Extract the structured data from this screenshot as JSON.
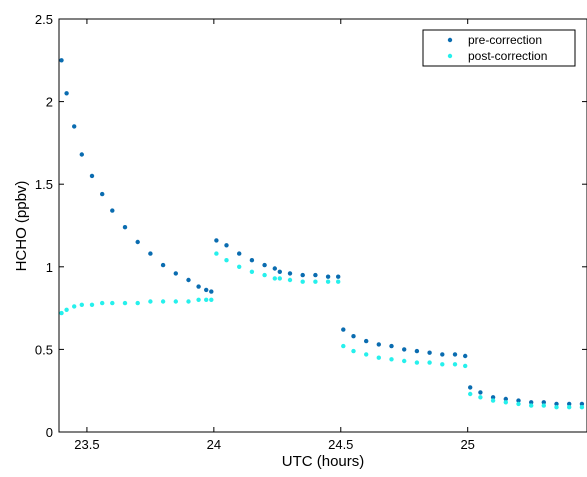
{
  "chart_data": {
    "type": "scatter",
    "xlabel": "UTC (hours)",
    "ylabel": "HCHO (ppbv)",
    "xlim": [
      23.39,
      25.47
    ],
    "ylim": [
      0,
      2.5
    ],
    "x_ticks": [
      "23.5",
      "24",
      "24.5",
      "25"
    ],
    "y_ticks": [
      "0",
      "0.5",
      "1",
      "1.5",
      "2",
      "2.5"
    ],
    "x_tick_values": [
      23.5,
      24,
      24.5,
      25
    ],
    "y_tick_values": [
      0,
      0.5,
      1,
      1.5,
      2,
      2.5
    ],
    "grid": false,
    "legend_position": "top-right",
    "series": [
      {
        "name": "pre-correction",
        "color": "#0a6cb0",
        "x": [
          23.4,
          23.42,
          23.45,
          23.48,
          23.52,
          23.56,
          23.6,
          23.65,
          23.7,
          23.75,
          23.8,
          23.85,
          23.9,
          23.94,
          23.97,
          23.99,
          24.01,
          24.05,
          24.1,
          24.15,
          24.2,
          24.24,
          24.26,
          24.3,
          24.35,
          24.4,
          24.45,
          24.49,
          24.51,
          24.55,
          24.6,
          24.65,
          24.7,
          24.75,
          24.8,
          24.85,
          24.9,
          24.95,
          24.99,
          25.01,
          25.05,
          25.1,
          25.15,
          25.2,
          25.25,
          25.3,
          25.35,
          25.4,
          25.45
        ],
        "y": [
          2.25,
          2.05,
          1.85,
          1.68,
          1.55,
          1.44,
          1.34,
          1.24,
          1.15,
          1.08,
          1.01,
          0.96,
          0.92,
          0.88,
          0.86,
          0.85,
          1.16,
          1.13,
          1.08,
          1.04,
          1.01,
          0.99,
          0.97,
          0.96,
          0.95,
          0.95,
          0.94,
          0.94,
          0.62,
          0.58,
          0.55,
          0.53,
          0.52,
          0.5,
          0.49,
          0.48,
          0.47,
          0.47,
          0.46,
          0.27,
          0.24,
          0.21,
          0.2,
          0.19,
          0.18,
          0.18,
          0.17,
          0.17,
          0.17
        ]
      },
      {
        "name": "post-correction",
        "color": "#26f0ec",
        "x": [
          23.4,
          23.42,
          23.45,
          23.48,
          23.52,
          23.56,
          23.6,
          23.65,
          23.7,
          23.75,
          23.8,
          23.85,
          23.9,
          23.94,
          23.97,
          23.99,
          24.01,
          24.05,
          24.1,
          24.15,
          24.2,
          24.24,
          24.26,
          24.3,
          24.35,
          24.4,
          24.45,
          24.49,
          24.51,
          24.55,
          24.6,
          24.65,
          24.7,
          24.75,
          24.8,
          24.85,
          24.9,
          24.95,
          24.99,
          25.01,
          25.05,
          25.1,
          25.15,
          25.2,
          25.25,
          25.3,
          25.35,
          25.4,
          25.45
        ],
        "y": [
          0.72,
          0.74,
          0.76,
          0.77,
          0.77,
          0.78,
          0.78,
          0.78,
          0.78,
          0.79,
          0.79,
          0.79,
          0.79,
          0.8,
          0.8,
          0.8,
          1.08,
          1.04,
          1.0,
          0.97,
          0.95,
          0.93,
          0.93,
          0.92,
          0.91,
          0.91,
          0.91,
          0.91,
          0.52,
          0.49,
          0.47,
          0.45,
          0.44,
          0.43,
          0.42,
          0.42,
          0.41,
          0.41,
          0.4,
          0.23,
          0.21,
          0.19,
          0.18,
          0.17,
          0.16,
          0.16,
          0.15,
          0.15,
          0.15
        ]
      }
    ]
  }
}
